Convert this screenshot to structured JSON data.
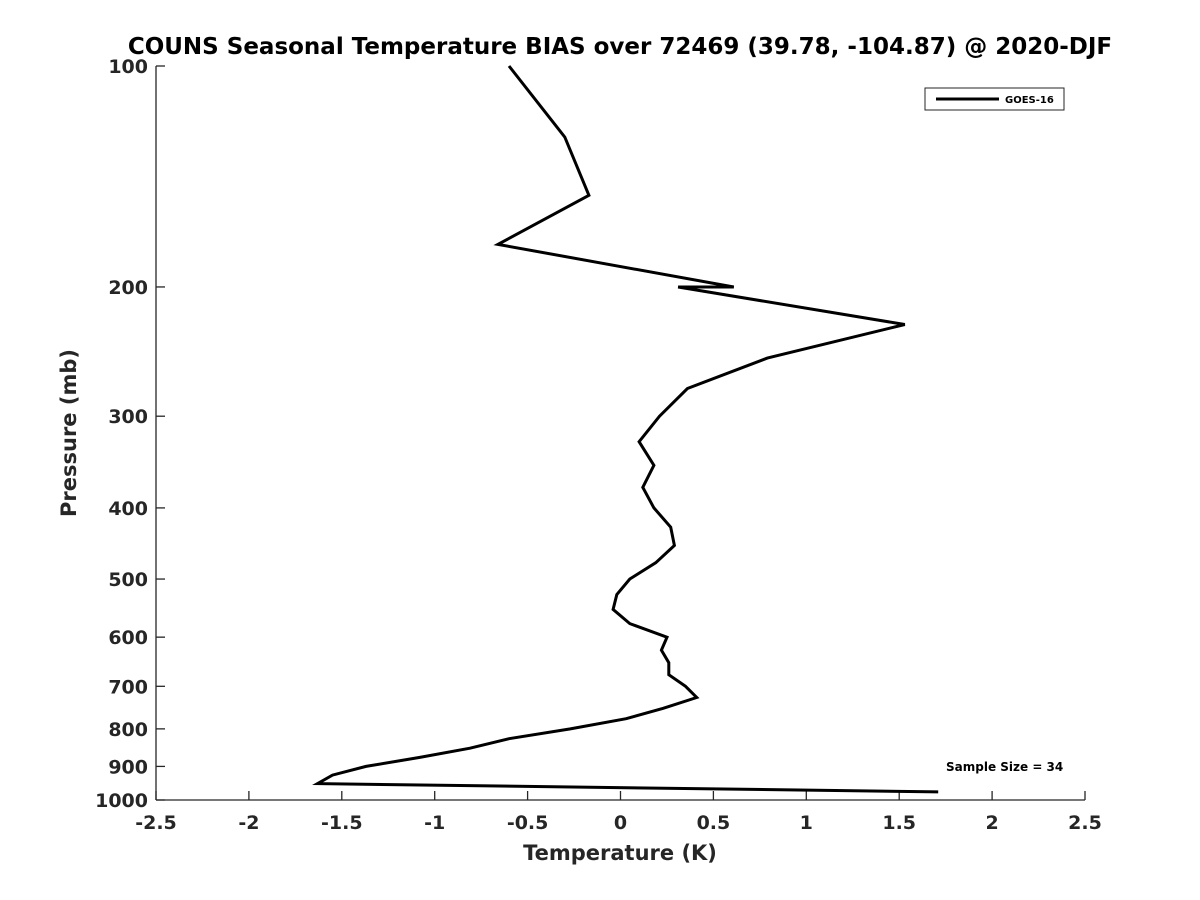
{
  "chart_data": {
    "type": "line",
    "title": "COUNS Seasonal Temperature BIAS over 72469 (39.78, -104.87) @ 2020-DJF",
    "xlabel": "Temperature (K)",
    "ylabel": "Pressure (mb)",
    "xlim": [
      -2.5,
      2.5
    ],
    "ylim": [
      100,
      1000
    ],
    "y_scale": "log",
    "y_reversed": true,
    "grid": false,
    "legend_position": "top-right",
    "x_ticks": [
      "-2.5",
      "-2",
      "-1.5",
      "-1",
      "-0.5",
      "0",
      "0.5",
      "1",
      "1.5",
      "2",
      "2.5"
    ],
    "x_tick_values": [
      -2.5,
      -2,
      -1.5,
      -1,
      -0.5,
      0,
      0.5,
      1,
      1.5,
      2,
      2.5
    ],
    "y_ticks": [
      "100",
      "200",
      "300",
      "400",
      "500",
      "600",
      "700",
      "800",
      "900",
      "1000"
    ],
    "y_tick_values": [
      100,
      200,
      300,
      400,
      500,
      600,
      700,
      800,
      900,
      1000
    ],
    "series": [
      {
        "name": "GOES-16",
        "color": "#000000",
        "points": [
          {
            "t": -0.6,
            "p": 100
          },
          {
            "t": -0.3,
            "p": 125
          },
          {
            "t": -0.17,
            "p": 150
          },
          {
            "t": -0.66,
            "p": 175
          },
          {
            "t": 0.61,
            "p": 200
          },
          {
            "t": 0.31,
            "p": 200
          },
          {
            "t": 1.53,
            "p": 225
          },
          {
            "t": 0.79,
            "p": 250
          },
          {
            "t": 0.36,
            "p": 275
          },
          {
            "t": 0.21,
            "p": 300
          },
          {
            "t": 0.1,
            "p": 325
          },
          {
            "t": 0.18,
            "p": 350
          },
          {
            "t": 0.12,
            "p": 375
          },
          {
            "t": 0.18,
            "p": 400
          },
          {
            "t": 0.27,
            "p": 425
          },
          {
            "t": 0.29,
            "p": 450
          },
          {
            "t": 0.19,
            "p": 475
          },
          {
            "t": 0.05,
            "p": 500
          },
          {
            "t": -0.02,
            "p": 525
          },
          {
            "t": -0.04,
            "p": 550
          },
          {
            "t": 0.05,
            "p": 575
          },
          {
            "t": 0.25,
            "p": 600
          },
          {
            "t": 0.22,
            "p": 625
          },
          {
            "t": 0.26,
            "p": 650
          },
          {
            "t": 0.26,
            "p": 675
          },
          {
            "t": 0.35,
            "p": 700
          },
          {
            "t": 0.41,
            "p": 725
          },
          {
            "t": 0.23,
            "p": 750
          },
          {
            "t": 0.03,
            "p": 775
          },
          {
            "t": -0.27,
            "p": 800
          },
          {
            "t": -0.6,
            "p": 825
          },
          {
            "t": -0.81,
            "p": 850
          },
          {
            "t": -1.08,
            "p": 875
          },
          {
            "t": -1.37,
            "p": 900
          },
          {
            "t": -1.55,
            "p": 925
          },
          {
            "t": -1.63,
            "p": 950
          },
          {
            "t": 1.71,
            "p": 975
          }
        ]
      }
    ],
    "annotation": "Sample Size = 34"
  }
}
